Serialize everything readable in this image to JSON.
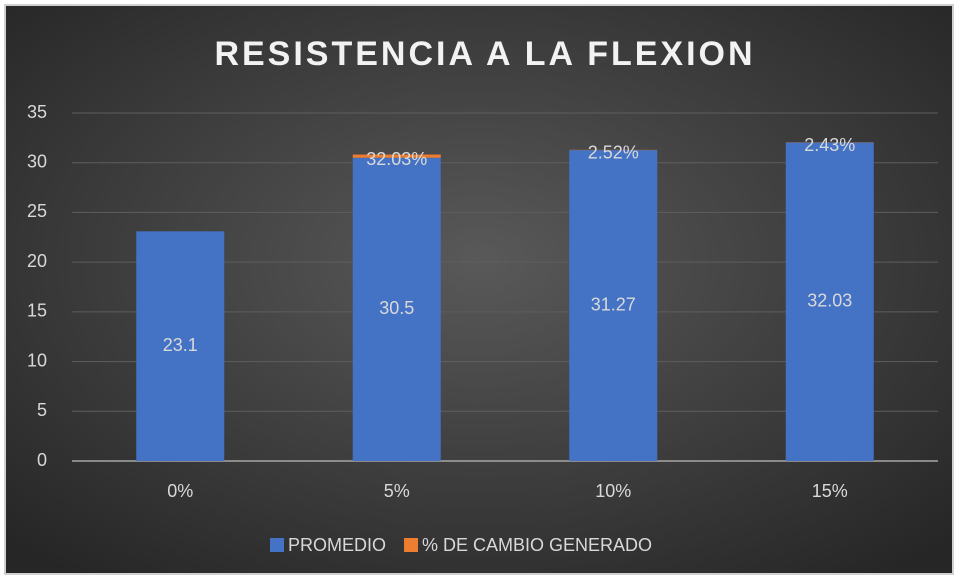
{
  "chart_data": {
    "type": "bar",
    "stacked": true,
    "title": "RESISTENCIA A LA FLEXION",
    "categories": [
      "0%",
      "5%",
      "10%",
      "15%"
    ],
    "series": [
      {
        "name": "PROMEDIO",
        "color": "#4472c4",
        "values": [
          23.1,
          30.5,
          31.27,
          32.03
        ]
      },
      {
        "name": "% DE CAMBIO GENERADO",
        "color": "#ed7d31",
        "values": [
          null,
          0.3203,
          0.0252,
          0.0243
        ],
        "value_labels": [
          null,
          "32.03%",
          "2.52%",
          "2.43%"
        ]
      }
    ],
    "ylim": [
      0,
      35
    ],
    "yticks": [
      0,
      5,
      10,
      15,
      20,
      25,
      30,
      35
    ],
    "grid": true,
    "legend": "bottom"
  }
}
